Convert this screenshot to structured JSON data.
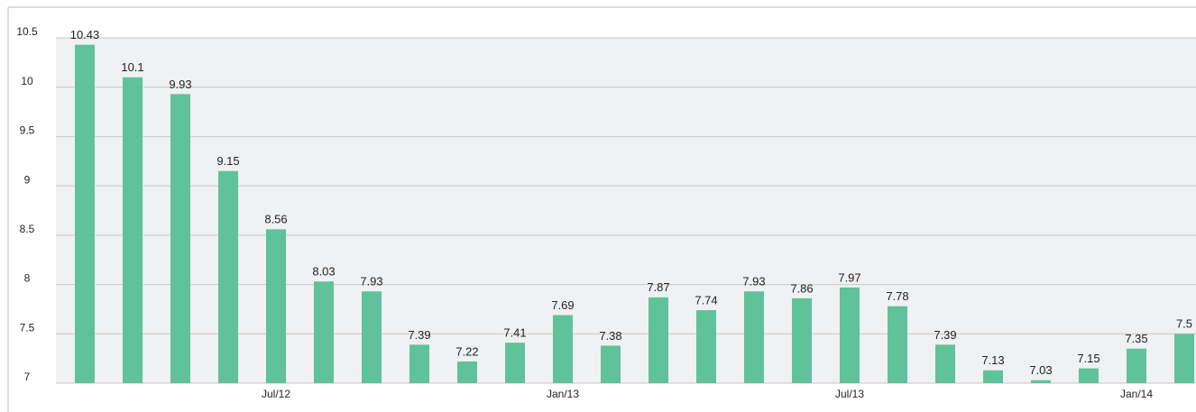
{
  "chart_data": {
    "type": "bar",
    "categories": [
      null,
      null,
      null,
      null,
      "Jul/12",
      null,
      null,
      null,
      null,
      null,
      "Jan/13",
      null,
      null,
      null,
      null,
      null,
      "Jul/13",
      null,
      null,
      null,
      null,
      null,
      "Jan/14",
      null
    ],
    "values": [
      10.43,
      10.1,
      9.93,
      9.15,
      8.56,
      8.03,
      7.93,
      7.39,
      7.22,
      7.41,
      7.69,
      7.38,
      7.87,
      7.74,
      7.93,
      7.86,
      7.97,
      7.78,
      7.39,
      7.13,
      7.03,
      7.15,
      7.35,
      7.5
    ],
    "color": "#5fc29a",
    "ylim": [
      7,
      10.5
    ],
    "yticks": [
      7,
      7.5,
      8,
      8.5,
      9,
      9.5,
      10,
      10.5
    ],
    "grid": true
  }
}
